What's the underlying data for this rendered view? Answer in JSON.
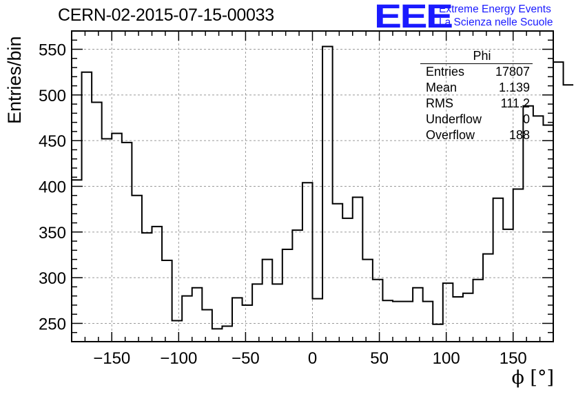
{
  "title": "CERN-02-2015-07-15-00033",
  "logo": {
    "text": "EEE",
    "line1": "Extreme Energy Events",
    "line2": "La Scienza nelle Scuole",
    "color": "#1a1aff"
  },
  "stats": {
    "name": "Phi",
    "rows": [
      {
        "label": "Entries",
        "value": "17807"
      },
      {
        "label": "Mean",
        "value": "1.139"
      },
      {
        "label": "RMS",
        "value": "111.2"
      },
      {
        "label": "Underflow",
        "value": "0"
      },
      {
        "label": "Overflow",
        "value": "188"
      }
    ]
  },
  "chart_data": {
    "type": "bar",
    "style": "step-histogram",
    "xlabel": "ϕ [°]",
    "ylabel": "Entries/bin",
    "xlim": [
      -180,
      180
    ],
    "ylim": [
      230,
      570
    ],
    "grid": true,
    "bin_width": 7.5,
    "x_ticks": [
      -150,
      -100,
      -50,
      0,
      50,
      100,
      150
    ],
    "y_ticks": [
      250,
      300,
      350,
      400,
      450,
      500,
      550
    ],
    "bin_edges_start": -180,
    "values": [
      407,
      525,
      492,
      452,
      458,
      448,
      390,
      349,
      356,
      319,
      253,
      280,
      289,
      265,
      244,
      247,
      278,
      270,
      293,
      320,
      293,
      331,
      352,
      404,
      277,
      553,
      381,
      365,
      388,
      320,
      298,
      275,
      274,
      274,
      289,
      274,
      249,
      294,
      279,
      283,
      298,
      326,
      387,
      353,
      397,
      488,
      477,
      467,
      536,
      511
    ]
  }
}
